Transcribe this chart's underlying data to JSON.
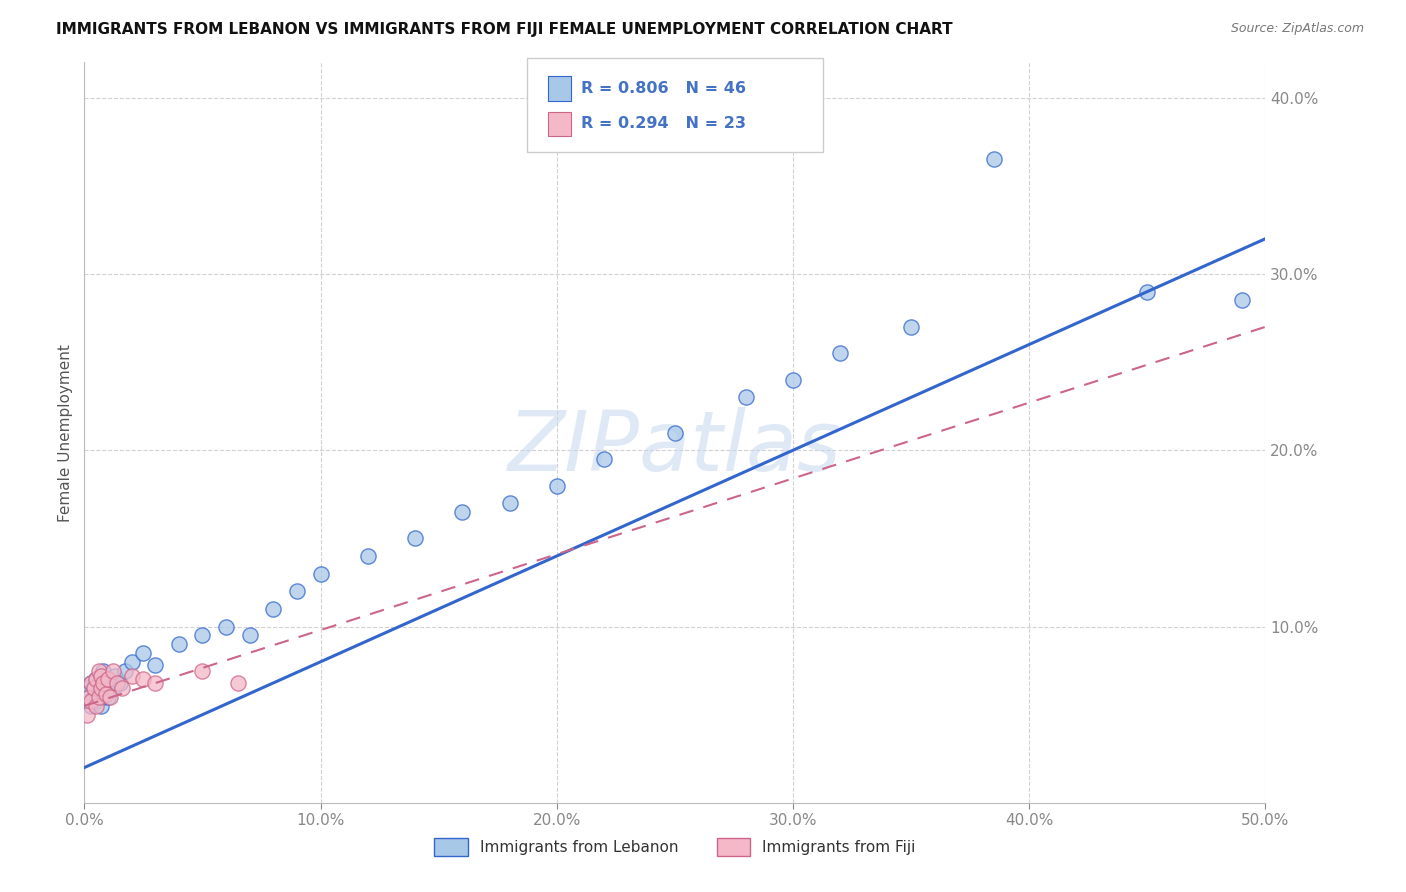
{
  "title": "IMMIGRANTS FROM LEBANON VS IMMIGRANTS FROM FIJI FEMALE UNEMPLOYMENT CORRELATION CHART",
  "source_text": "Source: ZipAtlas.com",
  "ylabel": "Female Unemployment",
  "xlim": [
    0.0,
    0.5
  ],
  "ylim": [
    0.0,
    0.42
  ],
  "x_ticks": [
    0.0,
    0.1,
    0.2,
    0.3,
    0.4,
    0.5
  ],
  "y_ticks": [
    0.1,
    0.2,
    0.3,
    0.4
  ],
  "x_tick_labels": [
    "0.0%",
    "10.0%",
    "20.0%",
    "30.0%",
    "40.0%",
    "50.0%"
  ],
  "y_tick_labels": [
    "10.0%",
    "20.0%",
    "30.0%",
    "40.0%"
  ],
  "lebanon_color": "#a8c8e8",
  "fiji_color": "#f4b8c8",
  "lebanon_edge": "#3366cc",
  "fiji_edge": "#cc6688",
  "R_lebanon": 0.806,
  "N_lebanon": 46,
  "R_fiji": 0.294,
  "N_fiji": 23,
  "legend_label_lebanon": "Immigrants from Lebanon",
  "legend_label_fiji": "Immigrants from Fiji",
  "watermark": "ZIPatlas",
  "background_color": "#ffffff",
  "grid_color": "#cccccc",
  "title_color": "#111111",
  "axis_label_color": "#555555",
  "tick_color": "#4472c4",
  "leb_line_start_y": 0.02,
  "leb_line_end_y": 0.32,
  "fiji_line_start_y": 0.055,
  "fiji_line_end_y": 0.27,
  "lebanon_x": [
    0.001,
    0.002,
    0.003,
    0.003,
    0.004,
    0.004,
    0.005,
    0.005,
    0.006,
    0.006,
    0.007,
    0.007,
    0.008,
    0.008,
    0.009,
    0.01,
    0.01,
    0.011,
    0.012,
    0.013,
    0.015,
    0.017,
    0.02,
    0.025,
    0.03,
    0.04,
    0.05,
    0.06,
    0.07,
    0.08,
    0.09,
    0.1,
    0.12,
    0.14,
    0.16,
    0.18,
    0.2,
    0.22,
    0.25,
    0.28,
    0.3,
    0.32,
    0.35,
    0.385,
    0.45,
    0.49
  ],
  "lebanon_y": [
    0.065,
    0.06,
    0.055,
    0.068,
    0.06,
    0.065,
    0.058,
    0.07,
    0.062,
    0.068,
    0.055,
    0.072,
    0.06,
    0.075,
    0.065,
    0.07,
    0.06,
    0.068,
    0.065,
    0.072,
    0.068,
    0.075,
    0.08,
    0.085,
    0.078,
    0.09,
    0.095,
    0.1,
    0.095,
    0.11,
    0.12,
    0.13,
    0.14,
    0.15,
    0.165,
    0.17,
    0.18,
    0.195,
    0.21,
    0.23,
    0.24,
    0.255,
    0.27,
    0.365,
    0.29,
    0.285
  ],
  "fiji_x": [
    0.001,
    0.002,
    0.003,
    0.003,
    0.004,
    0.005,
    0.005,
    0.006,
    0.006,
    0.007,
    0.007,
    0.008,
    0.009,
    0.01,
    0.011,
    0.012,
    0.014,
    0.016,
    0.02,
    0.025,
    0.03,
    0.05,
    0.065
  ],
  "fiji_y": [
    0.05,
    0.06,
    0.058,
    0.068,
    0.065,
    0.055,
    0.07,
    0.06,
    0.075,
    0.065,
    0.072,
    0.068,
    0.062,
    0.07,
    0.06,
    0.075,
    0.068,
    0.065,
    0.072,
    0.07,
    0.068,
    0.075,
    0.068
  ]
}
